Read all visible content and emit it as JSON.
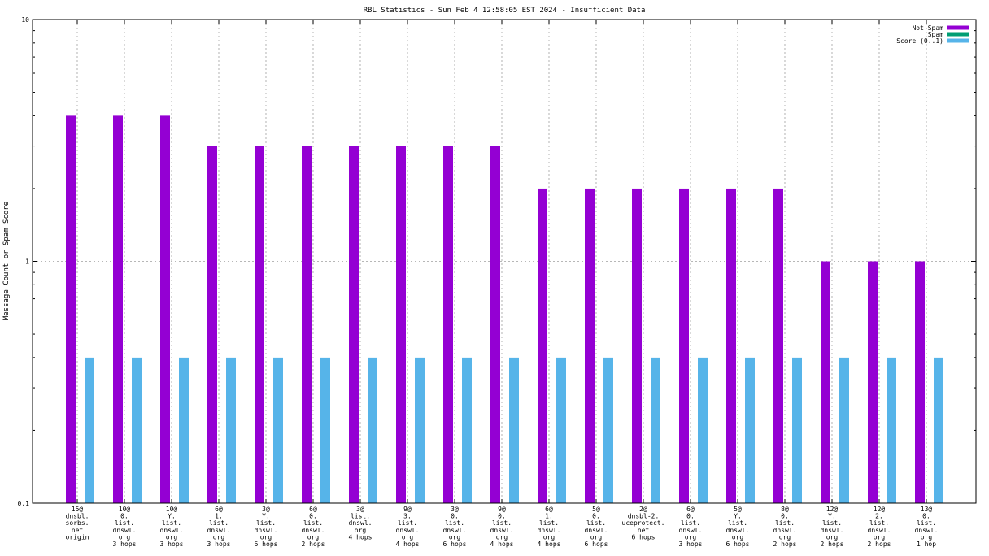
{
  "chart_data": {
    "type": "bar",
    "title": "RBL Statistics - Sun Feb  4 12:58:05 EST 2024 - Insufficient Data",
    "ylabel": "Message Count or Spam Score",
    "xlabel": "",
    "yscale": "log",
    "ylim": [
      0.1,
      10
    ],
    "yticks": [
      "0.1",
      "1",
      "10"
    ],
    "grid": true,
    "legend_position": "top-right",
    "categories": [
      [
        "15@",
        "dnsbl.",
        "sorbs.",
        "net",
        "origin"
      ],
      [
        "10@",
        "0.",
        "list.",
        "dnswl.",
        "org",
        "3 hops"
      ],
      [
        "10@",
        "Y.",
        "list.",
        "dnswl.",
        "org",
        "3 hops"
      ],
      [
        "6@",
        "1.",
        "list.",
        "dnswl.",
        "org",
        "3 hops"
      ],
      [
        "3@",
        "Y.",
        "list.",
        "dnswl.",
        "org",
        "6 hops"
      ],
      [
        "6@",
        "0.",
        "list.",
        "dnswl.",
        "org",
        "2 hops"
      ],
      [
        "3@",
        "list.",
        "dnswl.",
        "org",
        "4 hops"
      ],
      [
        "9@",
        "3.",
        "list.",
        "dnswl.",
        "org",
        "4 hops"
      ],
      [
        "3@",
        "0.",
        "list.",
        "dnswl.",
        "org",
        "6 hops"
      ],
      [
        "9@",
        "0.",
        "list.",
        "dnswl.",
        "org",
        "4 hops"
      ],
      [
        "6@",
        "1.",
        "list.",
        "dnswl.",
        "org",
        "4 hops"
      ],
      [
        "5@",
        "0.",
        "list.",
        "dnswl.",
        "org",
        "6 hops"
      ],
      [
        "2@",
        "dnsbl-2.",
        "uceprotect.",
        "net",
        "6 hops"
      ],
      [
        "6@",
        "0.",
        "list.",
        "dnswl.",
        "org",
        "3 hops"
      ],
      [
        "5@",
        "Y.",
        "list.",
        "dnswl.",
        "org",
        "6 hops"
      ],
      [
        "8@",
        "0.",
        "list.",
        "dnswl.",
        "org",
        "2 hops"
      ],
      [
        "12@",
        "Y.",
        "list.",
        "dnswl.",
        "org",
        "2 hops"
      ],
      [
        "12@",
        "2.",
        "list.",
        "dnswl.",
        "org",
        "2 hops"
      ],
      [
        "13@",
        "0.",
        "list.",
        "dnswl.",
        "org",
        "1 hop"
      ]
    ],
    "series": [
      {
        "name": "Not Spam",
        "color": "#9400d3",
        "values": [
          4,
          4,
          4,
          3,
          3,
          3,
          3,
          3,
          3,
          3,
          2,
          2,
          2,
          2,
          2,
          2,
          1,
          1,
          1
        ]
      },
      {
        "name": "Spam",
        "color": "#009e73",
        "values": [
          0,
          0,
          0,
          0,
          0,
          0,
          0,
          0,
          0,
          0,
          0,
          0,
          0,
          0,
          0,
          0,
          0,
          0,
          0
        ]
      },
      {
        "name": "Score (0..1)",
        "color": "#56b4e9",
        "values": [
          0.4,
          0.4,
          0.4,
          0.4,
          0.4,
          0.4,
          0.4,
          0.4,
          0.4,
          0.4,
          0.4,
          0.4,
          0.4,
          0.4,
          0.4,
          0.4,
          0.4,
          0.4,
          0.4
        ]
      }
    ]
  }
}
